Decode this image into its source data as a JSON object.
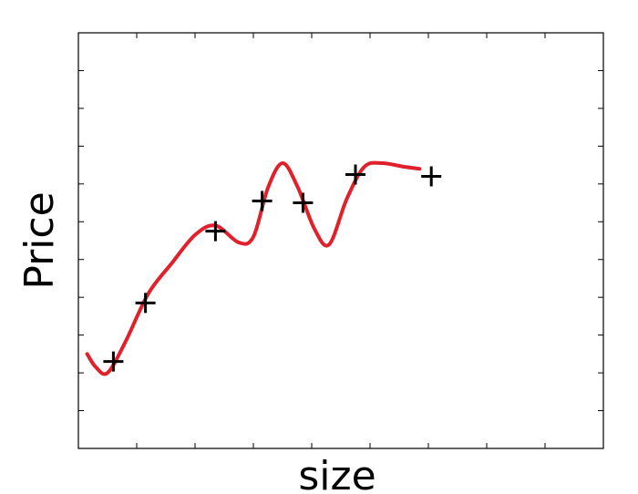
{
  "chart_data": {
    "type": "scatter",
    "title": "",
    "xlabel": "size",
    "ylabel": "Price",
    "xlim": [
      0,
      9
    ],
    "ylim": [
      0,
      11
    ],
    "grid": false,
    "legend": "none",
    "x_ticks": [
      1,
      2,
      3,
      4,
      5,
      6,
      7,
      8
    ],
    "y_ticks": [
      1,
      2,
      3,
      4,
      5,
      6,
      7,
      8,
      9,
      10
    ],
    "tick_labels_shown": false,
    "series": [
      {
        "kind": "points",
        "marker": "+",
        "color": "#000000",
        "points": [
          {
            "x": 0.6,
            "y": 2.3
          },
          {
            "x": 1.15,
            "y": 3.85
          },
          {
            "x": 2.35,
            "y": 5.75
          },
          {
            "x": 3.15,
            "y": 6.55
          },
          {
            "x": 3.85,
            "y": 6.5
          },
          {
            "x": 4.75,
            "y": 7.25
          },
          {
            "x": 6.05,
            "y": 7.2
          }
        ]
      },
      {
        "kind": "curve",
        "color": "#e0202a",
        "points": [
          {
            "x": 0.15,
            "y": 2.5
          },
          {
            "x": 0.3,
            "y": 2.15
          },
          {
            "x": 0.5,
            "y": 2.0
          },
          {
            "x": 0.8,
            "y": 2.8
          },
          {
            "x": 1.2,
            "y": 4.1
          },
          {
            "x": 1.6,
            "y": 4.9
          },
          {
            "x": 2.0,
            "y": 5.65
          },
          {
            "x": 2.35,
            "y": 5.9
          },
          {
            "x": 2.75,
            "y": 5.45
          },
          {
            "x": 3.0,
            "y": 5.6
          },
          {
            "x": 3.25,
            "y": 6.9
          },
          {
            "x": 3.5,
            "y": 7.55
          },
          {
            "x": 3.75,
            "y": 6.95
          },
          {
            "x": 4.05,
            "y": 5.8
          },
          {
            "x": 4.3,
            "y": 5.4
          },
          {
            "x": 4.6,
            "y": 6.6
          },
          {
            "x": 4.9,
            "y": 7.45
          },
          {
            "x": 5.2,
            "y": 7.55
          },
          {
            "x": 5.6,
            "y": 7.45
          },
          {
            "x": 5.85,
            "y": 7.4
          }
        ]
      }
    ]
  }
}
